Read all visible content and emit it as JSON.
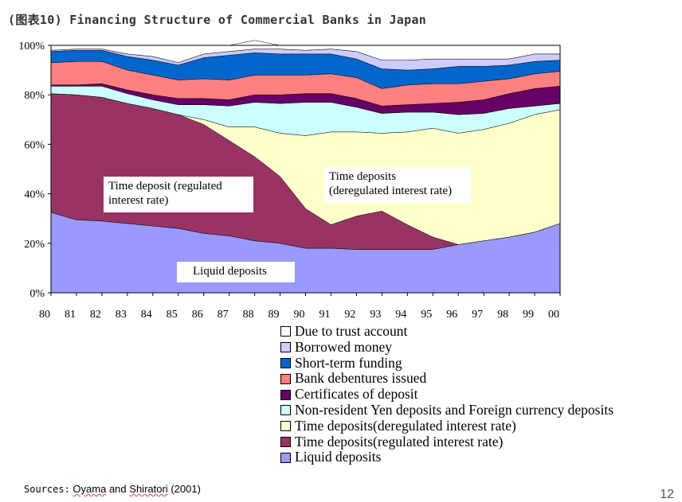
{
  "title": "(图表10) Financing Structure of Commercial Banks in Japan",
  "chart_data": {
    "type": "area",
    "stacked": true,
    "normalized": true,
    "title": "(图表10) Financing Structure of Commercial Banks in Japan",
    "x": [
      "80",
      "81",
      "82",
      "83",
      "84",
      "85",
      "86",
      "87",
      "88",
      "89",
      "90",
      "91",
      "92",
      "93",
      "94",
      "95",
      "96",
      "97",
      "98",
      "99",
      "00"
    ],
    "y_ticks": [
      "0%",
      "20%",
      "40%",
      "60%",
      "80%",
      "100%"
    ],
    "ylim": [
      0,
      100
    ],
    "grid": false,
    "legend_position": "bottom",
    "series": [
      {
        "name": "Liquid deposits",
        "color": "#9999ff",
        "values": [
          32.5,
          29.5,
          29,
          28,
          27,
          26,
          24,
          23,
          21,
          20,
          18,
          18,
          17.5,
          17.5,
          17.5,
          17.5,
          19.5,
          21,
          22.5,
          24.5,
          28
        ]
      },
      {
        "name": "Time deposits(regulated interest rate)",
        "color": "#993366",
        "values": [
          48,
          50.5,
          50,
          48.5,
          47.5,
          46,
          44,
          38.5,
          34,
          27,
          16,
          9.5,
          13.5,
          15.5,
          10,
          5,
          0,
          0,
          0,
          0,
          0
        ]
      },
      {
        "name": "Time deposits(deregulated interest rate)",
        "color": "#ffffcc",
        "values": [
          0,
          0,
          0,
          0,
          0,
          0,
          2,
          5.5,
          12,
          17.5,
          29.5,
          37.5,
          34,
          31.5,
          37.5,
          44,
          45,
          45,
          46,
          47.5,
          46
        ]
      },
      {
        "name": "Non-resident Yen deposits and Foreign currency deposits",
        "color": "#ccffff",
        "values": [
          3,
          3.5,
          4.5,
          4,
          3.5,
          4,
          6,
          8.5,
          10,
          12,
          13.5,
          12,
          10,
          8,
          8,
          6.5,
          7.5,
          6.5,
          6,
          3.5,
          2.5
        ]
      },
      {
        "name": "Certificates of deposit",
        "color": "#660066",
        "values": [
          0.5,
          0.5,
          1,
          1.5,
          2,
          2.5,
          2.5,
          2.5,
          3,
          3.5,
          3.5,
          3.5,
          3.5,
          3,
          3,
          3.5,
          5,
          5.5,
          6,
          7,
          7
        ]
      },
      {
        "name": "Bank debentures issued",
        "color": "#ff8080",
        "values": [
          9,
          9.5,
          9,
          8,
          8,
          7.5,
          8,
          8,
          8,
          8,
          7.5,
          8,
          8.5,
          7,
          8,
          8,
          7.5,
          7.5,
          6,
          6,
          6
        ]
      },
      {
        "name": "Short-term funding",
        "color": "#0066cc",
        "values": [
          4.5,
          4.5,
          4.5,
          5.5,
          6,
          6,
          8.5,
          10,
          9,
          8.5,
          8.5,
          8,
          7.5,
          8,
          6,
          6,
          7,
          6,
          5.5,
          5,
          4.5
        ]
      },
      {
        "name": "Borrowed money",
        "color": "#ccccff",
        "values": [
          0.5,
          0.5,
          0.5,
          1,
          1.5,
          1,
          1.5,
          1.5,
          1.5,
          2,
          1.5,
          2,
          3,
          3.5,
          4,
          4,
          3,
          3,
          2.5,
          3,
          2.5
        ]
      },
      {
        "name": "Due to trust account",
        "color": "#ffffff",
        "values": [
          2,
          1.5,
          1.5,
          3.5,
          4.5,
          7,
          3.5,
          2.5,
          3.5,
          1.5,
          2,
          1.5,
          2.5,
          6,
          6,
          5.5,
          5.5,
          5.5,
          5.5,
          3.5,
          3.5
        ]
      }
    ],
    "annotations": [
      {
        "id": "regulated",
        "text_lines": [
          "Time deposit (regulated",
          "interest rate)"
        ]
      },
      {
        "id": "deregulated",
        "text_lines": [
          "Time deposits",
          "(deregulated interest rate)"
        ]
      },
      {
        "id": "liquid",
        "text_lines": [
          "Liquid deposits"
        ]
      }
    ]
  },
  "legend": [
    {
      "label": "Due to trust account",
      "color": "#ffffff"
    },
    {
      "label": "Borrowed money",
      "color": "#ccccff"
    },
    {
      "label": "Short-term funding",
      "color": "#0066cc"
    },
    {
      "label": "Bank debentures issued",
      "color": "#ff8080"
    },
    {
      "label": "Certificates of deposit",
      "color": "#660066"
    },
    {
      "label": "Non-resident Yen deposits and Foreign currency deposits",
      "color": "#ccffff"
    },
    {
      "label": "Time deposits(deregulated interest rate)",
      "color": "#ffffcc"
    },
    {
      "label": "Time deposits(regulated interest rate)",
      "color": "#993366"
    },
    {
      "label": "Liquid deposits",
      "color": "#9999ff"
    }
  ],
  "source": {
    "label": "Sources:",
    "author1": "Oyama",
    "and": "and",
    "author2": "Shiratori",
    "year": "(2001)"
  },
  "page_number": "12"
}
